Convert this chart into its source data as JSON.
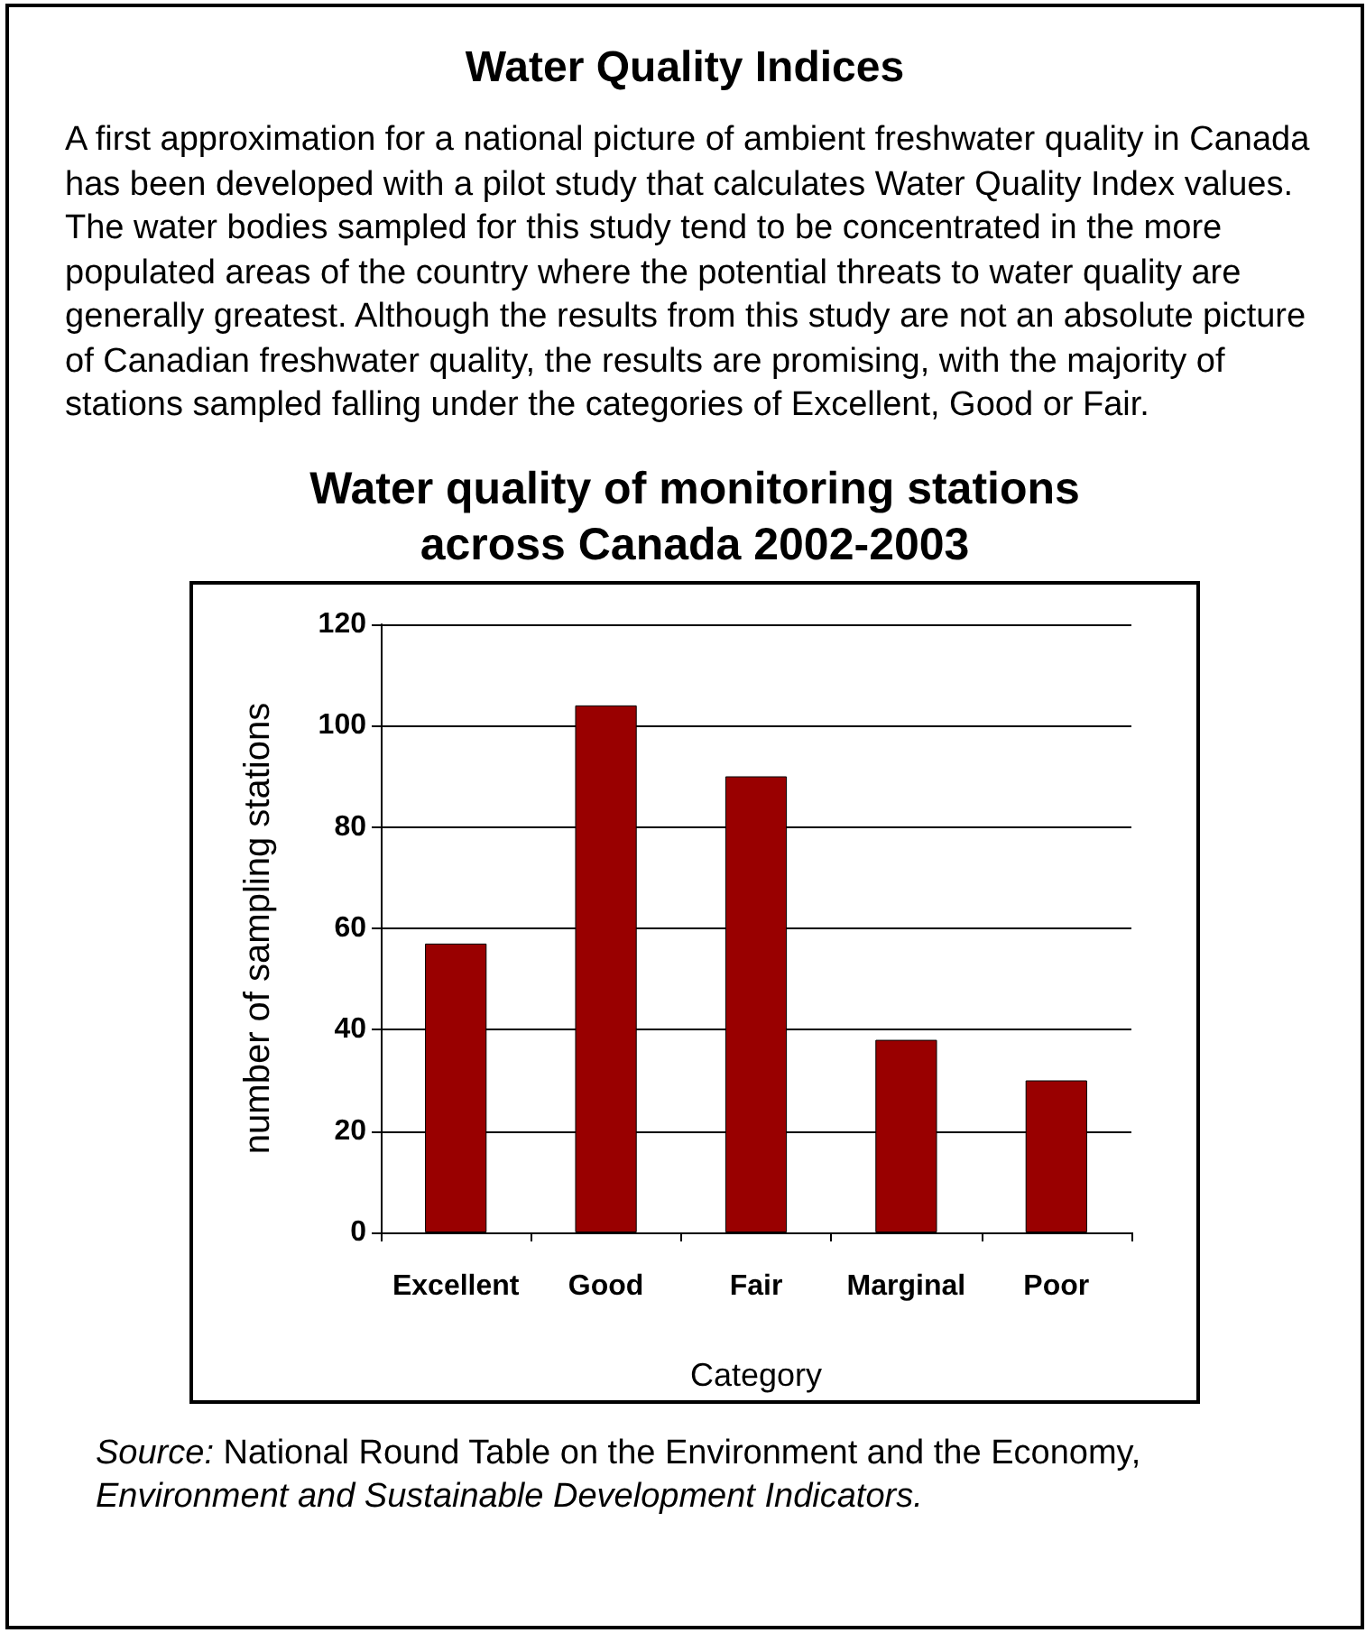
{
  "chart_data": {
    "type": "bar",
    "title": "Water quality of monitoring stations across Canada 2002-2003",
    "annotations": [
      "Water Quality Indices",
      "A first approximation for a national picture of ambient freshwater quality in Canada has been developed with a pilot study that calculates Water Quality Index values. The water bodies sampled for this study tend to be concentrated in the more populated areas of the country where the potential threats to water quality are generally greatest. Although the results from this study are not an absolute picture of Canadian freshwater quality, the results are promising, with the majority of stations sampled falling under the categories of Excellent, Good or Fair.",
      "Source:",
      "National Round Table on the Environment and the Economy,",
      "Environment and Sustainable Development Indicators."
    ],
    "xlabel": "Category",
    "ylabel": "number of sampling stations",
    "categories": [
      "Excellent",
      "Good",
      "Fair",
      "Marginal",
      "Poor"
    ],
    "values": [
      57,
      104,
      90,
      38,
      30
    ],
    "color": "#990000",
    "ylim": [
      0,
      120
    ],
    "yticks": [
      0,
      20,
      40,
      60,
      80,
      100,
      120
    ],
    "grid": "y"
  }
}
